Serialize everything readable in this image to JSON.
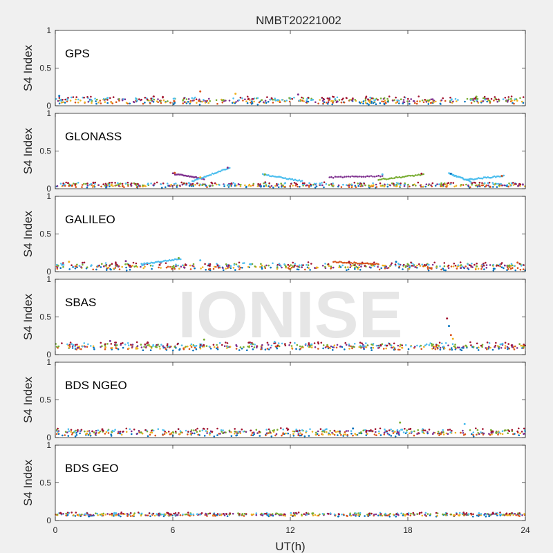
{
  "chart_data": {
    "type": "scatter",
    "title": "NMBT20221002",
    "xlabel": "UT(h)",
    "xlim": [
      0,
      24
    ],
    "xticks": [
      0,
      6,
      12,
      18,
      24
    ],
    "xtick_labels": [
      "0",
      "6",
      "12",
      "18",
      "24"
    ],
    "grid": false,
    "watermark": "IONISE",
    "series_colors": [
      "#0072BD",
      "#D95319",
      "#EDB120",
      "#7E2F8E",
      "#77AC30",
      "#4DBEEE",
      "#A2142F"
    ],
    "panels": [
      {
        "label": "GPS",
        "ylabel": "S4 Index",
        "ylim": [
          0,
          1
        ],
        "yticks": [
          0,
          0.5,
          1
        ],
        "ytick_labels": [
          "0",
          "0.5",
          "1"
        ],
        "baseline": 0.07,
        "spread": 0.03,
        "features": [
          {
            "x": 0.2,
            "y": 0.13
          },
          {
            "x": 7.4,
            "y": 0.19
          },
          {
            "x": 9.2,
            "y": 0.16
          },
          {
            "x": 12.4,
            "y": 0.15
          },
          {
            "x": 21.5,
            "y": 0.12
          }
        ]
      },
      {
        "label": "GLONASS",
        "ylabel": "S4 Index",
        "ylim": [
          0,
          1
        ],
        "yticks": [
          0,
          0.5,
          1
        ],
        "ytick_labels": [
          "0",
          "0.5",
          "1"
        ],
        "baseline": 0.05,
        "spread": 0.02,
        "features": [
          {
            "x": 6.1,
            "y": 0.21
          },
          {
            "x": 7.4,
            "y": 0.15
          },
          {
            "x": 8.8,
            "y": 0.28
          },
          {
            "x": 10.7,
            "y": 0.19
          },
          {
            "x": 16.7,
            "y": 0.19
          },
          {
            "x": 18.7,
            "y": 0.2
          },
          {
            "x": 20.2,
            "y": 0.2
          },
          {
            "x": 22.8,
            "y": 0.17
          }
        ],
        "arcs": [
          {
            "x0": 6.0,
            "x1": 7.6,
            "y0": 0.2,
            "y1": 0.13,
            "color": "#7E2F8E"
          },
          {
            "x0": 7.0,
            "x1": 8.9,
            "y0": 0.1,
            "y1": 0.28,
            "color": "#4DBEEE"
          },
          {
            "x0": 10.6,
            "x1": 12.6,
            "y0": 0.19,
            "y1": 0.1,
            "color": "#4DBEEE"
          },
          {
            "x0": 14.0,
            "x1": 16.7,
            "y0": 0.15,
            "y1": 0.17,
            "color": "#7E2F8E"
          },
          {
            "x0": 16.5,
            "x1": 18.8,
            "y0": 0.12,
            "y1": 0.19,
            "color": "#77AC30"
          },
          {
            "x0": 20.1,
            "x1": 21.2,
            "y0": 0.2,
            "y1": 0.1,
            "color": "#4DBEEE"
          },
          {
            "x0": 21.0,
            "x1": 22.9,
            "y0": 0.12,
            "y1": 0.17,
            "color": "#4DBEEE"
          }
        ]
      },
      {
        "label": "GALILEO",
        "ylabel": "S4 Index",
        "ylim": [
          0,
          1
        ],
        "yticks": [
          0,
          0.5,
          1
        ],
        "ytick_labels": [
          "0",
          "0.5",
          "1"
        ],
        "baseline": 0.07,
        "spread": 0.03,
        "features": [
          {
            "x": 0.7,
            "y": 0.13
          },
          {
            "x": 3.6,
            "y": 0.14
          },
          {
            "x": 6.3,
            "y": 0.18
          },
          {
            "x": 7.4,
            "y": 0.15
          },
          {
            "x": 15.0,
            "y": 0.13
          },
          {
            "x": 17.4,
            "y": 0.13
          },
          {
            "x": 23.6,
            "y": 0.12
          }
        ],
        "arcs": [
          {
            "x0": 4.4,
            "x1": 6.4,
            "y0": 0.1,
            "y1": 0.17,
            "color": "#4DBEEE"
          },
          {
            "x0": 14.2,
            "x1": 16.5,
            "y0": 0.13,
            "y1": 0.1,
            "color": "#D95319"
          }
        ]
      },
      {
        "label": "SBAS",
        "ylabel": "S4 Index",
        "ylim": [
          0,
          1
        ],
        "yticks": [
          0,
          0.5,
          1
        ],
        "ytick_labels": [
          "0",
          "0.5",
          "1"
        ],
        "baseline": 0.11,
        "spread": 0.03,
        "features": [
          {
            "x": 2.8,
            "y": 0.18
          },
          {
            "x": 7.6,
            "y": 0.2
          },
          {
            "x": 11.2,
            "y": 0.17
          },
          {
            "x": 20.0,
            "y": 0.48
          },
          {
            "x": 20.1,
            "y": 0.38
          },
          {
            "x": 20.2,
            "y": 0.26
          },
          {
            "x": 20.3,
            "y": 0.21
          }
        ]
      },
      {
        "label": "BDS NGEO",
        "ylabel": "S4 Index",
        "ylim": [
          0,
          1
        ],
        "yticks": [
          0,
          0.5,
          1
        ],
        "ytick_labels": [
          "0",
          "0.5",
          "1"
        ],
        "baseline": 0.07,
        "spread": 0.03,
        "features": [
          {
            "x": 17.6,
            "y": 0.2
          },
          {
            "x": 20.9,
            "y": 0.18
          },
          {
            "x": 2.4,
            "y": 0.11
          },
          {
            "x": 15.2,
            "y": 0.12
          }
        ]
      },
      {
        "label": "BDS GEO",
        "ylabel": "S4 Index",
        "ylim": [
          0,
          1
        ],
        "yticks": [
          0,
          0.5,
          1
        ],
        "ytick_labels": [
          "0",
          "0.5",
          "1"
        ],
        "baseline": 0.08,
        "spread": 0.015,
        "features": []
      }
    ]
  }
}
